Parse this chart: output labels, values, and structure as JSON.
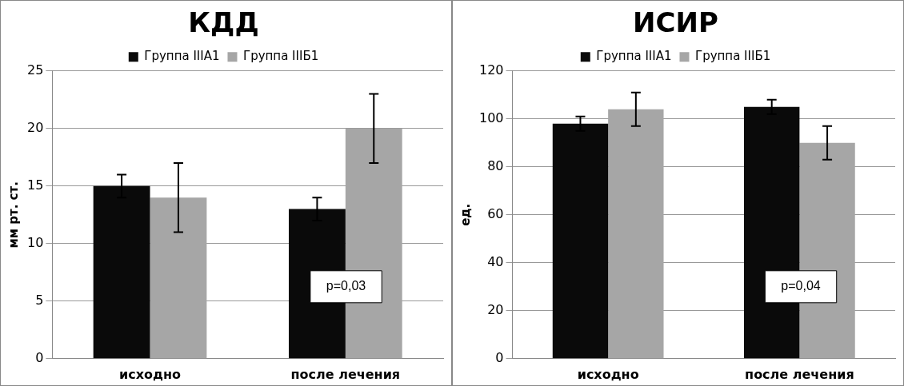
{
  "chart_data": [
    {
      "type": "bar",
      "title": "КДД",
      "ylabel": "мм рт. ст.",
      "categories": [
        "исходно",
        "после лечения"
      ],
      "series": [
        {
          "name": "Группа IIIА1",
          "color": "#0a0a0a",
          "values": [
            15,
            13
          ],
          "errors": [
            1,
            1
          ]
        },
        {
          "name": "Группа IIIБ1",
          "color": "#a6a6a6",
          "values": [
            14,
            20
          ],
          "errors": [
            3,
            3
          ]
        }
      ],
      "ylim": [
        0,
        25
      ],
      "yticks": [
        0,
        5,
        10,
        15,
        20,
        25
      ],
      "grid": "y",
      "legend": "top",
      "annotations": [
        "p=0,03"
      ]
    },
    {
      "type": "bar",
      "title": "ИСИР",
      "ylabel": "ед.",
      "categories": [
        "исходно",
        "после лечения"
      ],
      "series": [
        {
          "name": "Группа IIIА1",
          "color": "#0a0a0a",
          "values": [
            98,
            105
          ],
          "errors": [
            3,
            3
          ]
        },
        {
          "name": "Группа IIIБ1",
          "color": "#a6a6a6",
          "values": [
            104,
            90
          ],
          "errors": [
            7,
            7
          ]
        }
      ],
      "ylim": [
        0,
        120
      ],
      "yticks": [
        0,
        20,
        40,
        60,
        80,
        100,
        120
      ],
      "grid": "y",
      "legend": "top",
      "annotations": [
        "p=0,04"
      ]
    }
  ]
}
